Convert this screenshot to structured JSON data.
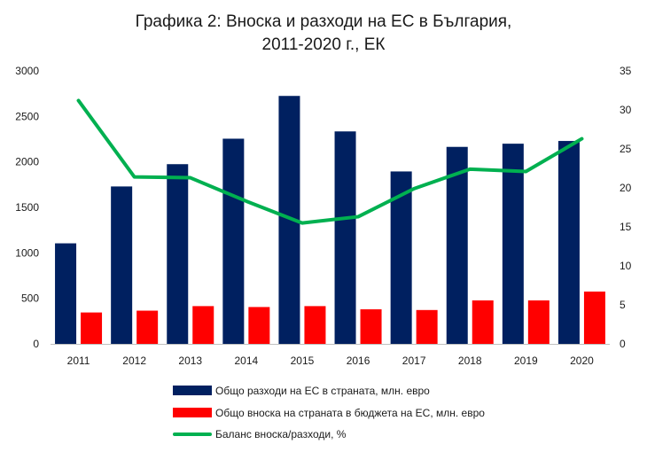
{
  "chart_data": {
    "type": "bar",
    "title_line1": "Графика 2: Вноска и разходи на ЕС в България,",
    "title_line2": "2011-2020 г., ЕК",
    "categories": [
      "2011",
      "2012",
      "2013",
      "2014",
      "2015",
      "2016",
      "2017",
      "2018",
      "2019",
      "2020"
    ],
    "series": [
      {
        "name": "Общо разходи на ЕС в страната, млн. евро",
        "type": "bar",
        "axis": "left",
        "color": "#002060",
        "values": [
          1105,
          1730,
          1975,
          2255,
          2725,
          2335,
          1895,
          2165,
          2200,
          2230
        ]
      },
      {
        "name": "Общо вноска на страната в бюджета на ЕС, млн. евро",
        "type": "bar",
        "axis": "left",
        "color": "#ff0000",
        "values": [
          345,
          365,
          415,
          405,
          415,
          380,
          372,
          478,
          478,
          575
        ]
      },
      {
        "name": "Баланс вноска/разходи, %",
        "type": "line",
        "axis": "right",
        "color": "#00b050",
        "values": [
          31.2,
          21.4,
          21.3,
          18.3,
          15.5,
          16.3,
          19.9,
          22.4,
          22.1,
          26.3
        ]
      }
    ],
    "y_left": {
      "min": 0,
      "max": 3000,
      "ticks": [
        "0",
        "500",
        "1000",
        "1500",
        "2000",
        "2500",
        "3000"
      ]
    },
    "y_right": {
      "min": 0,
      "max": 35,
      "ticks": [
        "0",
        "5",
        "10",
        "15",
        "20",
        "25",
        "30",
        "35"
      ]
    },
    "grid": false,
    "legend_position": "bottom"
  }
}
